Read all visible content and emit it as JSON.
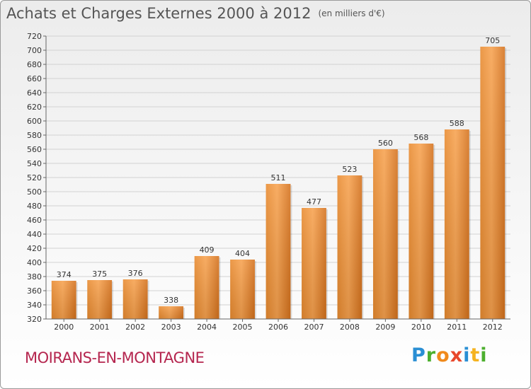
{
  "header": {
    "title": "Achats et Charges Externes 2000 à 2012",
    "unit": "(en milliers d'€)"
  },
  "footer": {
    "commune": "MOIRANS-EN-MONTAGNE",
    "logo_letters": [
      "P",
      "r",
      "o",
      "x",
      "i",
      "t",
      "i"
    ],
    "logo_colors": [
      "#2a8fd4",
      "#4caf2e",
      "#f08a1c",
      "#e8472b",
      "#2a8fd4",
      "#f5b320",
      "#4caf2e"
    ]
  },
  "chart_data": {
    "type": "bar",
    "title": "Achats et Charges Externes 2000 à 2012",
    "unit": "(en milliers d'€)",
    "categories": [
      "2000",
      "2001",
      "2002",
      "2003",
      "2004",
      "2005",
      "2006",
      "2007",
      "2008",
      "2009",
      "2010",
      "2011",
      "2012"
    ],
    "values": [
      374,
      375,
      376,
      338,
      409,
      404,
      511,
      477,
      523,
      560,
      568,
      588,
      705
    ],
    "ylim": [
      320,
      720
    ],
    "ytick_step": 20,
    "grid": true,
    "bar_color_top": "#f7a24f",
    "bar_color_bottom": "#d4711c"
  }
}
